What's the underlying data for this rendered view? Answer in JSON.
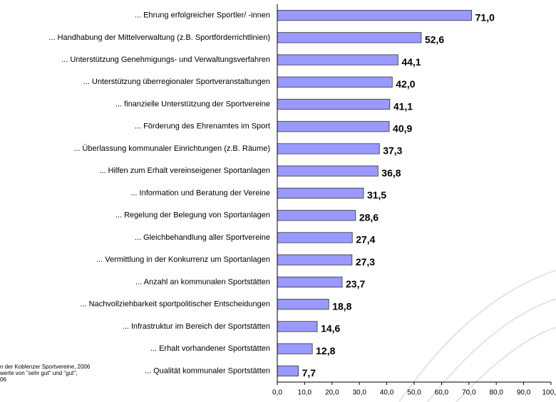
{
  "chart_data": {
    "type": "bar",
    "orientation": "horizontal",
    "categories": [
      "... Ehrung erfolgreicher Sportler/ -innen",
      "... Handhabung der Mittelverwaltung (z.B. Sportförderrichtlinien)",
      "... Unterstützung Genehmigungs- und Verwaltungsverfahren",
      "... Unterstützung überregionaler Sportveranstaltungen",
      "... finanzielle Unterstützung der Sportvereine",
      "... Förderung des Ehrenamtes im Sport",
      "... Überlassung kommunaler Einrichtungen (z.B. Räume)",
      "... Hilfen zum Erhalt vereinseigener Sportanlagen",
      "... Information und Beratung der Vereine",
      "... Regelung der Belegung von Sportanlagen",
      "... Gleichbehandlung aller Sportvereine",
      "... Vermittlung in der Konkurrenz um Sportanlagen",
      "... Anzahl an kommunalen Sportstätten",
      "... Nachvollziehbarkeit sportpolitischer Entscheidungen",
      "... Infrastruktur im Bereich der Sportstätten",
      "... Erhalt vorhandener Sportstätten",
      "... Qualität kommunaler Sportstätten"
    ],
    "values": [
      71.0,
      52.6,
      44.1,
      42.0,
      41.1,
      40.9,
      37.3,
      36.8,
      31.5,
      28.6,
      27.4,
      27.3,
      23.7,
      18.8,
      14.6,
      12.8,
      7.7
    ],
    "value_labels": [
      "71,0",
      "52,6",
      "44,1",
      "42,0",
      "41,1",
      "40,9",
      "37,3",
      "36,8",
      "31,5",
      "28,6",
      "27,4",
      "27,3",
      "23,7",
      "18,8",
      "14,6",
      "12,8",
      "7,7"
    ],
    "color": "#9999ff",
    "xlim": [
      0,
      100
    ],
    "xticks": [
      {
        "value": 0,
        "label": "0,0"
      },
      {
        "value": 10,
        "label": "10,0"
      },
      {
        "value": 20,
        "label": "20,0"
      },
      {
        "value": 30,
        "label": "30,0"
      },
      {
        "value": 40,
        "label": "40,0"
      },
      {
        "value": 50,
        "label": "50,0"
      },
      {
        "value": 60,
        "label": "60,0"
      },
      {
        "value": 70,
        "label": "70,0"
      },
      {
        "value": 80,
        "label": "80,0"
      },
      {
        "value": 90,
        "label": "90,0"
      },
      {
        "value": 100,
        "label": "100,0"
      }
    ],
    "notes": [
      "n der Koblenzer Sportvereine, 2006",
      "werte von \"sehr gut\" und \"gut\";",
      "06"
    ]
  }
}
